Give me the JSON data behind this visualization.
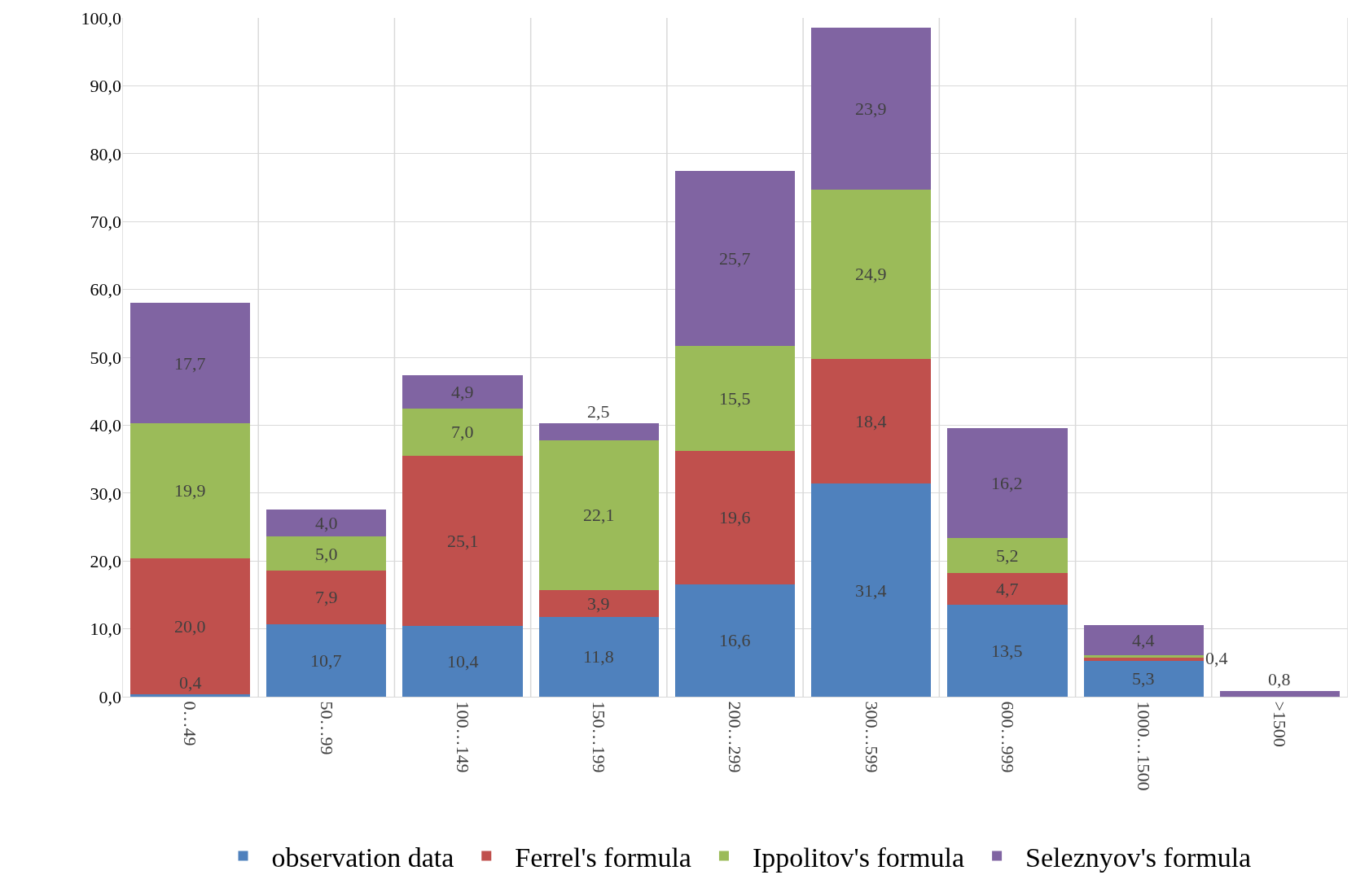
{
  "chart_data": {
    "type": "bar",
    "stacked": true,
    "grid": true,
    "legend": "bottom",
    "categories": [
      "0…49",
      "50…99",
      "100…149",
      "150…199",
      "200…299",
      "300…599",
      "600…999",
      "1000…1500",
      ">1500"
    ],
    "ylim": [
      0,
      100
    ],
    "yticks": [
      {
        "value": 0,
        "label": "0,0"
      },
      {
        "value": 10,
        "label": "10,0"
      },
      {
        "value": 20,
        "label": "20,0"
      },
      {
        "value": 30,
        "label": "30,0"
      },
      {
        "value": 40,
        "label": "40,0"
      },
      {
        "value": 50,
        "label": "50,0"
      },
      {
        "value": 60,
        "label": "60,0"
      },
      {
        "value": 70,
        "label": "70,0"
      },
      {
        "value": 80,
        "label": "80,0"
      },
      {
        "value": 90,
        "label": "90,0"
      },
      {
        "value": 100,
        "label": "100,0"
      }
    ],
    "series": [
      {
        "name": "observation data",
        "color": "#4f81bd",
        "values": [
          0.4,
          10.7,
          10.4,
          11.8,
          16.6,
          31.4,
          13.5,
          5.3,
          null
        ],
        "value_labels": [
          "0,4",
          "10,7",
          "10,4",
          "11,8",
          "16,6",
          "31,4",
          "13,5",
          "5,3",
          null
        ]
      },
      {
        "name": "Ferrel's formula",
        "color": "#c0504d",
        "values": [
          20.0,
          7.9,
          25.1,
          3.9,
          19.6,
          18.4,
          4.7,
          0.4,
          null
        ],
        "value_labels": [
          "20,0",
          "7,9",
          "25,1",
          "3,9",
          "19,6",
          "18,4",
          "4,7",
          "0,4",
          null
        ]
      },
      {
        "name": "Ippolitov's formula",
        "color": "#9bbb59",
        "values": [
          19.9,
          5.0,
          7.0,
          22.1,
          15.5,
          24.9,
          5.2,
          0.4,
          null
        ],
        "value_labels": [
          "19,9",
          "5,0",
          "7,0",
          "22,1",
          "15,5",
          "24,9",
          "5,2",
          null,
          null
        ]
      },
      {
        "name": "Seleznyov's formula",
        "color": "#8064a2",
        "values": [
          17.7,
          4.0,
          4.9,
          2.5,
          25.7,
          23.9,
          16.2,
          4.4,
          0.8
        ],
        "value_labels": [
          "17,7",
          "4,0",
          "4,9",
          "2,5",
          "25,7",
          "23,9",
          "16,2",
          "4,4",
          "0,8"
        ]
      }
    ]
  }
}
